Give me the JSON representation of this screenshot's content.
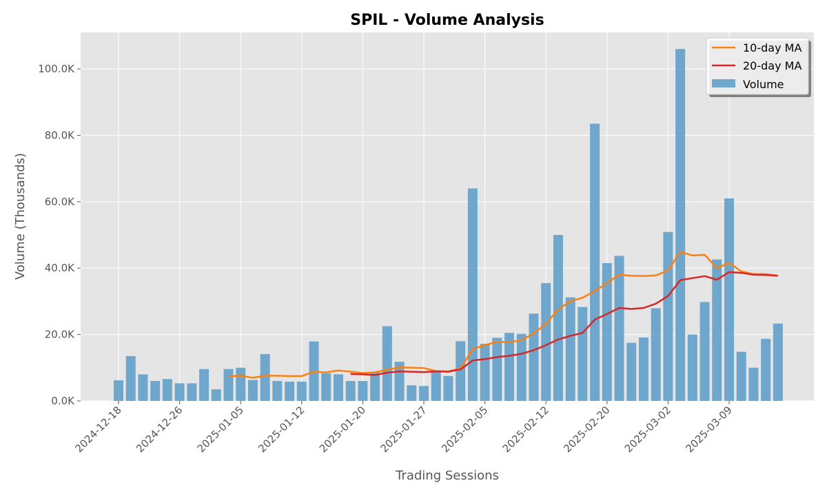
{
  "chart_data": {
    "type": "bar",
    "title": "SPIL - Volume Analysis",
    "xlabel": "Trading Sessions",
    "ylabel": "Volume (Thousands)",
    "ylim": [
      0,
      111
    ],
    "y_ticks": [
      0,
      20,
      40,
      60,
      80,
      100
    ],
    "y_tick_labels": [
      "0.0K",
      "20.0K",
      "40.0K",
      "60.0K",
      "80.0K",
      "100.0K"
    ],
    "x_ticks": [
      {
        "index": 0,
        "label": "2024-12-18"
      },
      {
        "index": 5,
        "label": "2024-12-26"
      },
      {
        "index": 10,
        "label": "2025-01-05"
      },
      {
        "index": 15,
        "label": "2025-01-12"
      },
      {
        "index": 20,
        "label": "2025-01-20"
      },
      {
        "index": 25,
        "label": "2025-01-27"
      },
      {
        "index": 30,
        "label": "2025-02-05"
      },
      {
        "index": 35,
        "label": "2025-02-12"
      },
      {
        "index": 40,
        "label": "2025-02-20"
      },
      {
        "index": 45,
        "label": "2025-03-02"
      },
      {
        "index": 50,
        "label": "2025-03-09"
      }
    ],
    "grid": true,
    "legend_position": "top-right",
    "colors": {
      "volume": "#5b9bc8",
      "ma10": "#ff7f0e",
      "ma20": "#d62728"
    },
    "series": [
      {
        "name": "Volume",
        "type": "bar",
        "values": [
          6.2,
          13.5,
          8.0,
          6.0,
          6.6,
          5.3,
          5.3,
          9.6,
          3.5,
          9.6,
          10.0,
          6.3,
          14.1,
          6.0,
          5.8,
          5.8,
          17.9,
          8.3,
          8.0,
          6.0,
          6.0,
          8.6,
          22.5,
          11.8,
          4.7,
          4.5,
          8.9,
          7.5,
          18.0,
          64.0,
          17.2,
          19.0,
          20.5,
          20.2,
          26.3,
          35.5,
          50.0,
          31.2,
          28.3,
          83.5,
          41.5,
          43.7,
          17.5,
          19.1,
          27.9,
          50.9,
          106.0,
          20.0,
          29.8,
          42.6,
          61.0,
          14.8,
          10.0,
          18.7,
          23.3
        ]
      },
      {
        "name": "10-day MA",
        "type": "line",
        "values": [
          null,
          null,
          null,
          null,
          null,
          null,
          null,
          null,
          null,
          7.4,
          7.6,
          7.0,
          7.6,
          7.6,
          7.5,
          7.5,
          8.8,
          8.6,
          9.2,
          8.8,
          8.4,
          8.6,
          9.4,
          10.1,
          10.0,
          9.9,
          9.0,
          8.9,
          9.8,
          15.6,
          16.8,
          17.8,
          17.7,
          18.3,
          20.4,
          23.2,
          27.6,
          30.0,
          31.1,
          33.1,
          35.5,
          38.0,
          37.7,
          37.6,
          37.8,
          39.3,
          44.9,
          43.8,
          44.0,
          40.0,
          41.6,
          39.0,
          38.2,
          38.2,
          37.7
        ]
      },
      {
        "name": "20-day MA",
        "type": "line",
        "values": [
          null,
          null,
          null,
          null,
          null,
          null,
          null,
          null,
          null,
          null,
          null,
          null,
          null,
          null,
          null,
          null,
          null,
          null,
          null,
          8.1,
          8.0,
          7.8,
          8.5,
          8.9,
          8.8,
          8.7,
          8.9,
          8.8,
          9.5,
          12.2,
          12.6,
          13.2,
          13.6,
          14.2,
          15.3,
          16.8,
          18.5,
          19.6,
          20.5,
          24.5,
          26.2,
          28.0,
          27.7,
          28.0,
          29.3,
          31.6,
          36.4,
          37.0,
          37.6,
          36.5,
          38.8,
          38.6,
          38.0,
          37.9,
          37.7
        ]
      }
    ]
  }
}
